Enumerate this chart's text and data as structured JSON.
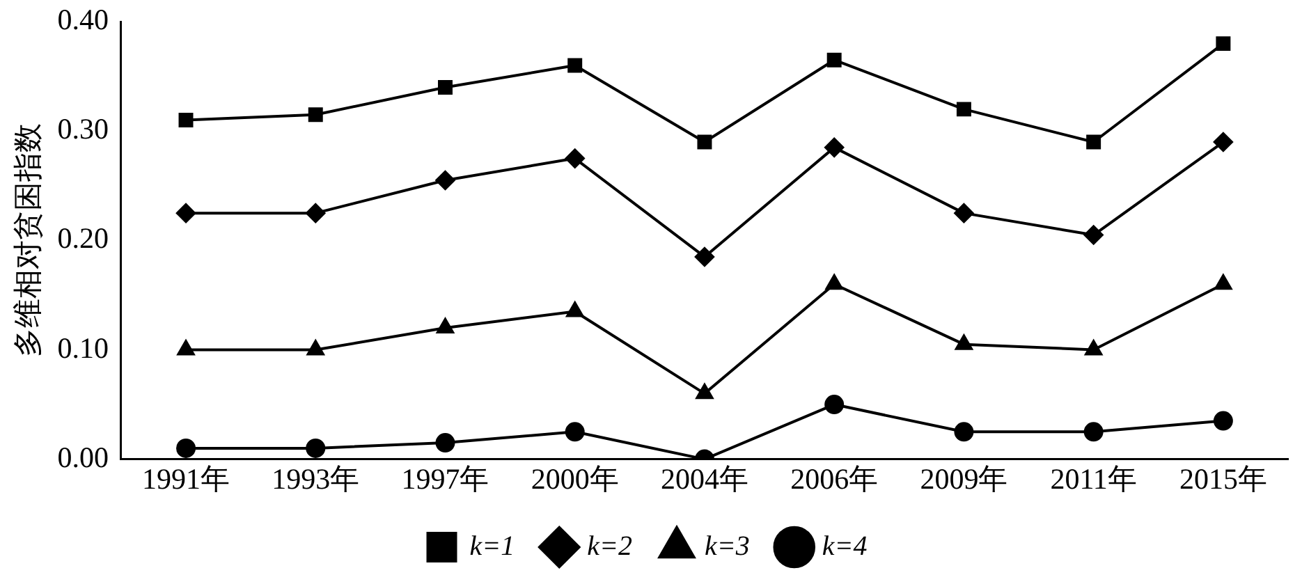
{
  "chart_data": {
    "type": "line",
    "ylabel": "多维相对贫困指数",
    "categories": [
      "1991年",
      "1993年",
      "1997年",
      "2000年",
      "2004年",
      "2006年",
      "2009年",
      "2011年",
      "2015年"
    ],
    "series": [
      {
        "name": "k=1",
        "color": "#000000",
        "marker": "square",
        "values": [
          0.31,
          0.315,
          0.34,
          0.36,
          0.29,
          0.365,
          0.32,
          0.29,
          0.38
        ]
      },
      {
        "name": "k=2",
        "color": "#000000",
        "marker": "diamond",
        "values": [
          0.225,
          0.225,
          0.255,
          0.275,
          0.185,
          0.285,
          0.225,
          0.205,
          0.29
        ]
      },
      {
        "name": "k=3",
        "color": "#000000",
        "marker": "triangle",
        "values": [
          0.1,
          0.1,
          0.12,
          0.135,
          0.06,
          0.16,
          0.105,
          0.1,
          0.16
        ]
      },
      {
        "name": "k=4",
        "color": "#000000",
        "marker": "circle",
        "values": [
          0.01,
          0.01,
          0.015,
          0.025,
          0.0,
          0.05,
          0.025,
          0.025,
          0.035
        ]
      }
    ],
    "ylim": [
      0,
      0.4
    ],
    "yticks": [
      {
        "value": 0,
        "label": "0.00"
      },
      {
        "value": 0.1,
        "label": "0.10"
      },
      {
        "value": 0.2,
        "label": "0.20"
      },
      {
        "value": 0.3,
        "label": "0.30"
      },
      {
        "value": 0.4,
        "label": "0.40"
      }
    ],
    "grid": false,
    "legend": "bottom",
    "line_style": "solid"
  }
}
